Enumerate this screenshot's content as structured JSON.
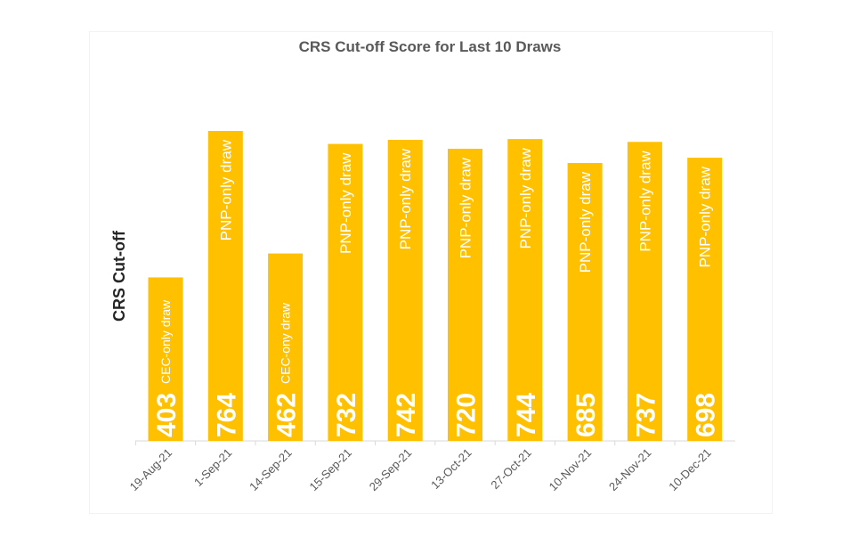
{
  "chart_data": {
    "type": "bar",
    "title": "CRS Cut-off Score for Last 10 Draws",
    "xlabel": "",
    "ylabel": "CRS Cut-off",
    "ylim": [
      0,
      764
    ],
    "grid": false,
    "legend": "none",
    "bar_color": "#FFC000",
    "categories": [
      "19-Aug-21",
      "1-Sep-21",
      "14-Sep-21",
      "15-Sep-21",
      "29-Sep-21",
      "13-Oct-21",
      "27-Oct-21",
      "10-Nov-21",
      "24-Nov-21",
      "10-Dec-21"
    ],
    "values": [
      403,
      764,
      462,
      732,
      742,
      720,
      744,
      685,
      737,
      698
    ],
    "annotations": [
      "CEC-only draw",
      "PNP-only draw",
      "CEC-ony draw",
      "PNP-only draw",
      "PNP-only draw",
      "PNP-only draw",
      "PNP-only draw",
      "PNP-only draw",
      "PNP-only draw",
      "PNP-only draw"
    ]
  }
}
